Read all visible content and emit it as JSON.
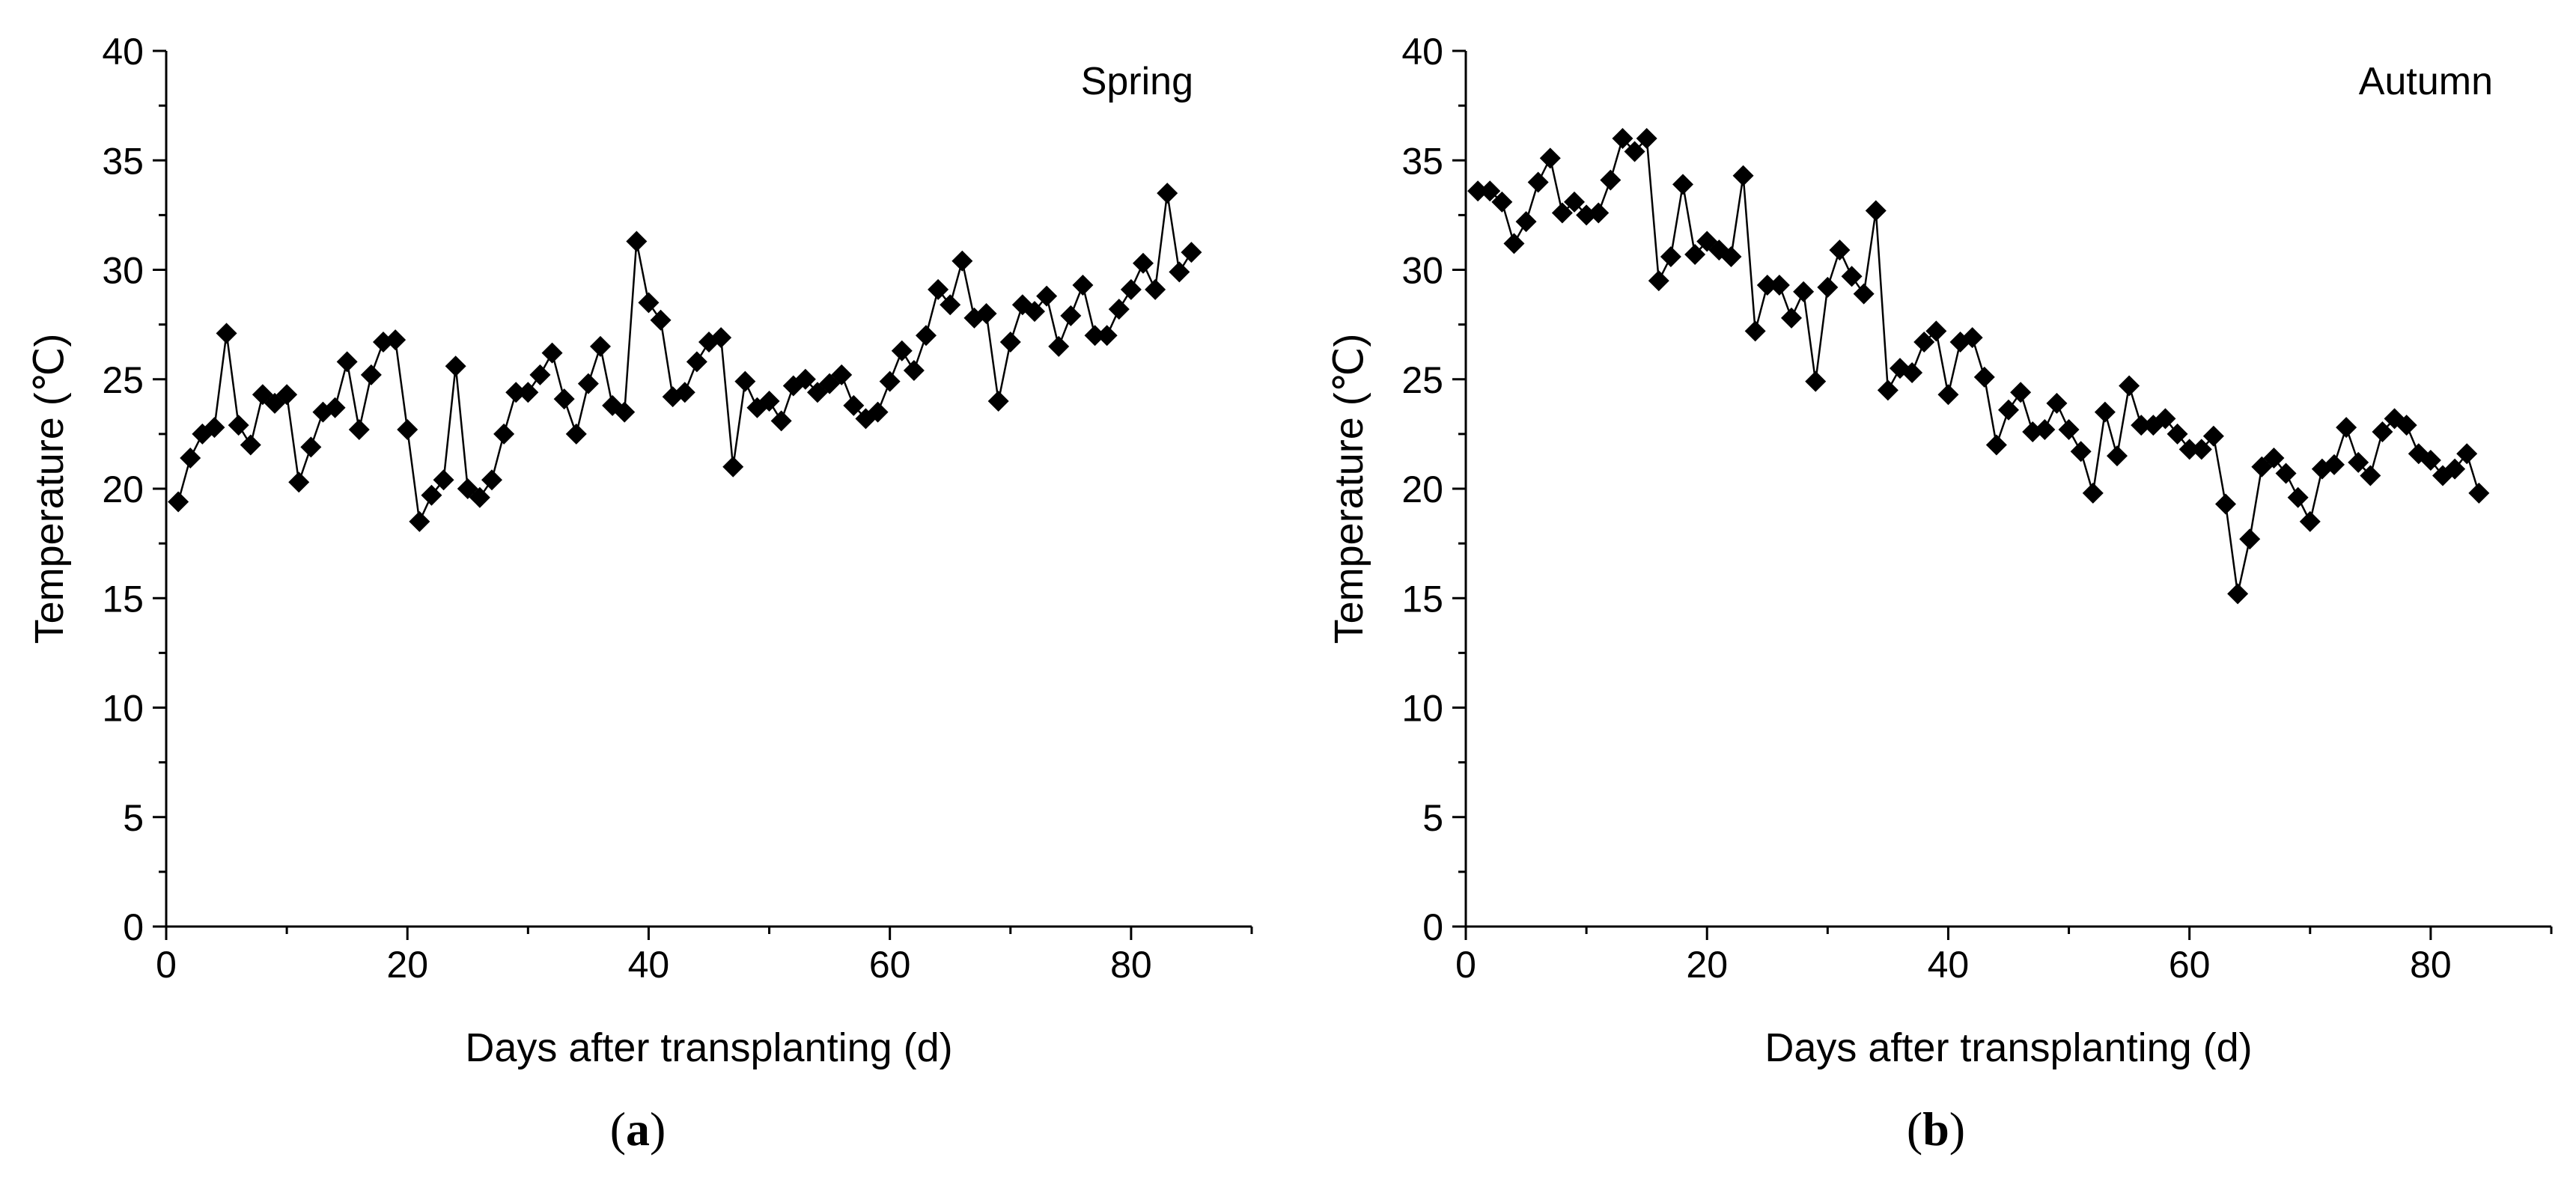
{
  "chart_data": [
    {
      "type": "line",
      "panel_label_prefix": "(",
      "panel_label": "a",
      "panel_label_suffix": ")",
      "annotation": "Spring",
      "xlabel": "Days after transplanting (d)",
      "ylabel": "Temperature (℃)",
      "xlim": [
        0,
        90
      ],
      "ylim": [
        0,
        40
      ],
      "x_ticks": [
        0,
        20,
        40,
        60,
        80
      ],
      "y_ticks": [
        0,
        5,
        10,
        15,
        20,
        25,
        30,
        35,
        40
      ],
      "marker": "diamond",
      "series": [
        {
          "name": "Spring",
          "x": [
            1,
            2,
            3,
            4,
            5,
            6,
            7,
            8,
            9,
            10,
            11,
            12,
            13,
            14,
            15,
            16,
            17,
            18,
            19,
            20,
            21,
            22,
            23,
            24,
            25,
            26,
            27,
            28,
            29,
            30,
            31,
            32,
            33,
            34,
            35,
            36,
            37,
            38,
            39,
            40,
            41,
            42,
            43,
            44,
            45,
            46,
            47,
            48,
            49,
            50,
            51,
            52,
            53,
            54,
            55,
            56,
            57,
            58,
            59,
            60,
            61,
            62,
            63,
            64,
            65,
            66,
            67,
            68,
            69,
            70,
            71,
            72,
            73,
            74,
            75,
            76,
            77,
            78,
            79,
            80,
            81,
            82,
            83,
            84,
            85
          ],
          "y": [
            19.4,
            21.4,
            22.5,
            22.8,
            27.1,
            22.9,
            22.0,
            24.3,
            23.9,
            24.3,
            20.3,
            21.9,
            23.5,
            23.7,
            25.8,
            22.7,
            25.2,
            26.7,
            26.8,
            22.7,
            18.5,
            19.7,
            20.4,
            25.6,
            20.0,
            19.6,
            20.4,
            22.5,
            24.4,
            24.4,
            25.2,
            26.2,
            24.1,
            22.5,
            24.8,
            26.5,
            23.8,
            23.5,
            31.3,
            28.5,
            27.7,
            24.2,
            24.4,
            25.8,
            26.7,
            26.9,
            21.0,
            24.9,
            23.7,
            24.0,
            23.1,
            24.7,
            25.0,
            24.4,
            24.8,
            25.2,
            23.8,
            23.2,
            23.5,
            24.9,
            26.3,
            25.4,
            27.0,
            29.1,
            28.4,
            30.4,
            27.8,
            28.0,
            24.0,
            26.7,
            28.4,
            28.1,
            28.8,
            26.5,
            27.9,
            29.3,
            27.0,
            27.0,
            28.2,
            29.1,
            30.3,
            29.1,
            33.5,
            29.9,
            30.8
          ]
        }
      ]
    },
    {
      "type": "line",
      "panel_label_prefix": "(",
      "panel_label": "b",
      "panel_label_suffix": ")",
      "annotation": "Autumn",
      "xlabel": "Days after transplanting (d)",
      "ylabel": "Temperature (℃)",
      "xlim": [
        0,
        90
      ],
      "ylim": [
        0,
        40
      ],
      "x_ticks": [
        0,
        20,
        40,
        60,
        80
      ],
      "y_ticks": [
        0,
        5,
        10,
        15,
        20,
        25,
        30,
        35,
        40
      ],
      "marker": "diamond",
      "series": [
        {
          "name": "Autumn",
          "x": [
            1,
            2,
            3,
            4,
            5,
            6,
            7,
            8,
            9,
            10,
            11,
            12,
            13,
            14,
            15,
            16,
            17,
            18,
            19,
            20,
            21,
            22,
            23,
            24,
            25,
            26,
            27,
            28,
            29,
            30,
            31,
            32,
            33,
            34,
            35,
            36,
            37,
            38,
            39,
            40,
            41,
            42,
            43,
            44,
            45,
            46,
            47,
            48,
            49,
            50,
            51,
            52,
            53,
            54,
            55,
            56,
            57,
            58,
            59,
            60,
            61,
            62,
            63,
            64,
            65,
            66,
            67,
            68,
            69,
            70,
            71,
            72,
            73,
            74,
            75,
            76,
            77,
            78,
            79,
            80,
            81,
            82,
            83,
            84
          ],
          "y": [
            33.6,
            33.6,
            33.1,
            31.2,
            32.2,
            34.0,
            35.1,
            32.6,
            33.1,
            32.5,
            32.6,
            34.1,
            36.0,
            35.4,
            36.0,
            29.5,
            30.6,
            33.9,
            30.7,
            31.3,
            30.9,
            30.6,
            34.3,
            27.2,
            29.3,
            29.3,
            27.8,
            29.0,
            24.9,
            29.2,
            30.9,
            29.7,
            28.9,
            32.7,
            24.5,
            25.5,
            25.3,
            26.7,
            27.2,
            24.3,
            26.7,
            26.9,
            25.1,
            22.0,
            23.6,
            24.4,
            22.6,
            22.7,
            23.9,
            22.7,
            21.7,
            19.8,
            23.5,
            21.5,
            24.7,
            22.9,
            22.9,
            23.2,
            22.5,
            21.8,
            21.8,
            22.4,
            19.3,
            15.2,
            17.7,
            21.0,
            21.4,
            20.7,
            19.6,
            18.5,
            20.9,
            21.1,
            22.8,
            21.2,
            20.6,
            22.6,
            23.2,
            22.9,
            21.6,
            21.3,
            20.6,
            20.9,
            21.6,
            19.8
          ]
        }
      ]
    }
  ]
}
